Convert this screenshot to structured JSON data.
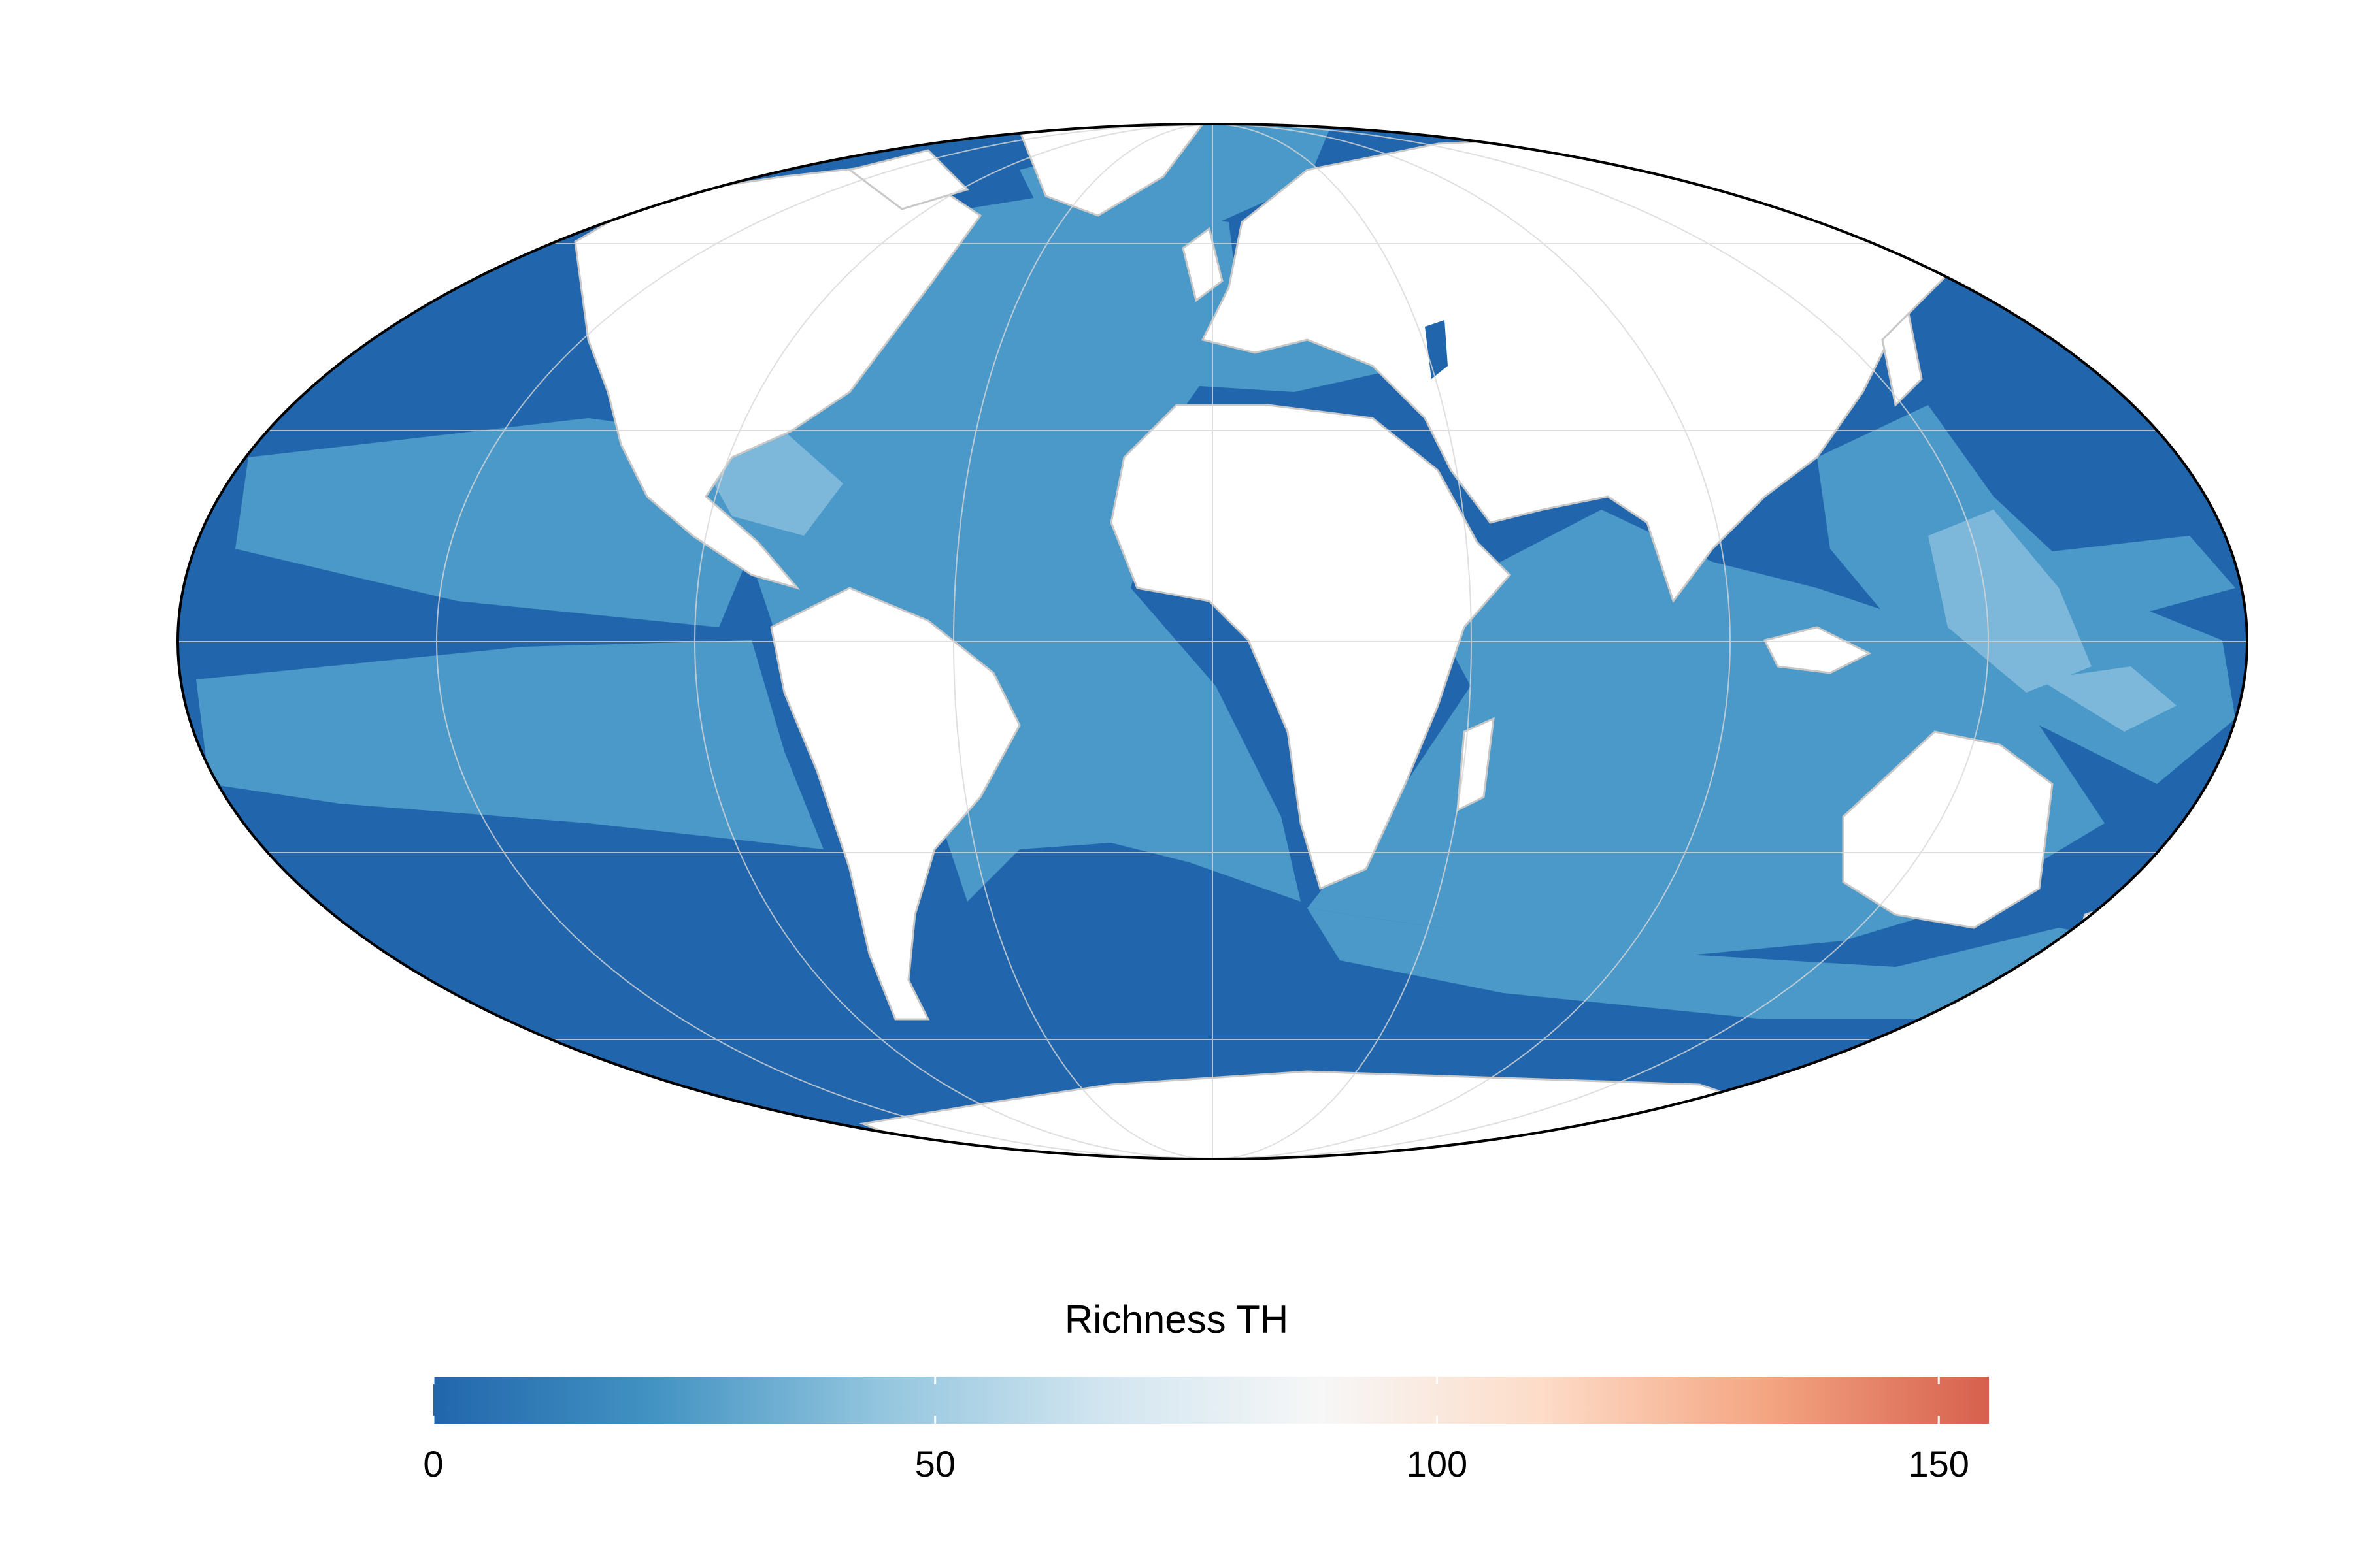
{
  "map": {
    "projection": "Mollweide",
    "ocean_color": "#2166ac",
    "land_color": "#ffffff",
    "border_color": "#c8c8c8",
    "graticule": true
  },
  "legend": {
    "title": "Richness TH",
    "min": 0,
    "max": 155,
    "ticks": [
      {
        "label": "0",
        "value": 0
      },
      {
        "label": "50",
        "value": 50
      },
      {
        "label": "100",
        "value": 100
      },
      {
        "label": "150",
        "value": 150
      }
    ],
    "colors": [
      "#2166ac",
      "#4393c3",
      "#92c5de",
      "#d1e5f0",
      "#f7f7f7",
      "#fddbc7",
      "#f4a582",
      "#d6604d"
    ]
  }
}
